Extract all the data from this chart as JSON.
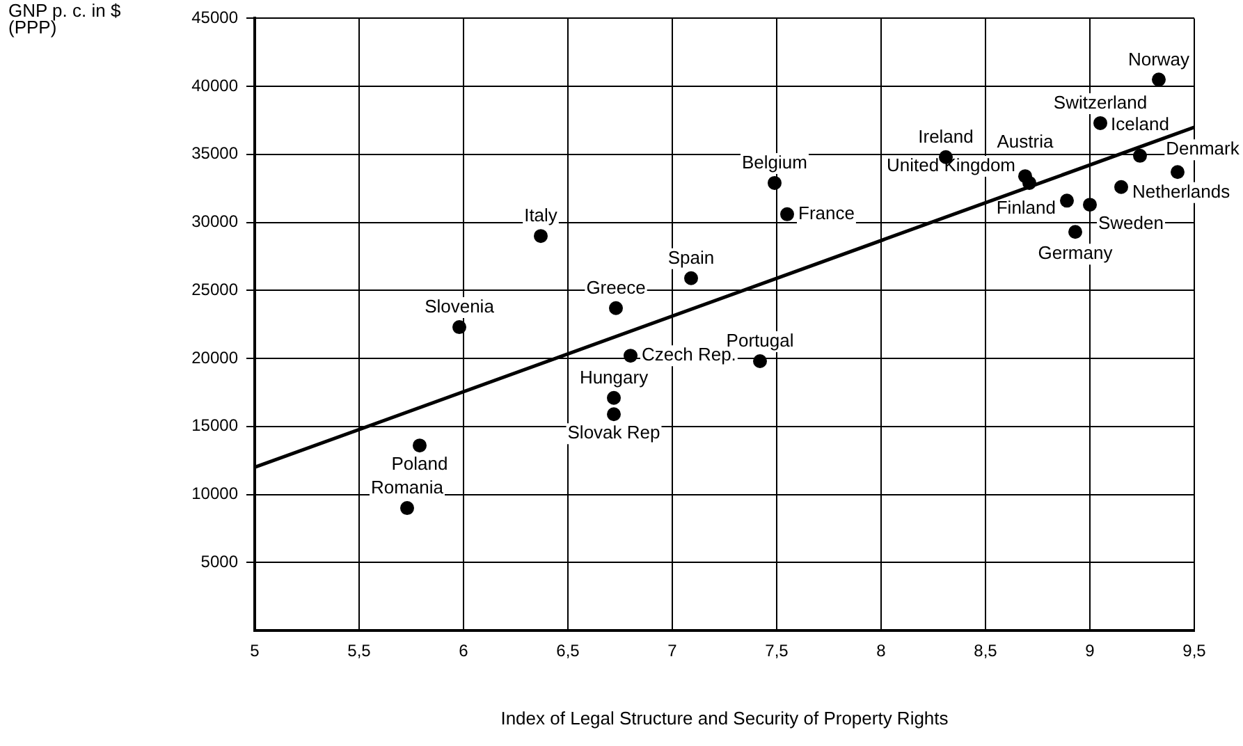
{
  "chart_data": {
    "type": "scatter",
    "xlabel": "Index of Legal Structure and Security of Property Rights",
    "ylabel": "GNP p. c. in $ (PPP)",
    "series": [
      {
        "type": "scatter",
        "color": "#000000",
        "marker": "circle",
        "x": [
          9.33,
          9.05,
          8.31,
          9.24,
          9.42,
          7.49,
          7.55,
          8.69,
          8.71,
          9.15,
          9.0,
          8.89,
          8.93,
          6.37,
          7.09,
          6.73,
          5.98,
          6.8,
          7.42,
          6.72,
          6.72,
          5.79,
          5.73
        ],
        "values": [
          40500,
          37300,
          34800,
          34900,
          33700,
          32900,
          30600,
          33400,
          32900,
          32600,
          31300,
          31600,
          29300,
          29000,
          25900,
          23700,
          22300,
          20200,
          19800,
          17100,
          15900,
          13600,
          9000
        ]
      },
      {
        "type": "line",
        "color": "#000000",
        "marker": "none",
        "x": [
          5,
          9.5
        ],
        "values": [
          12000,
          37000
        ]
      }
    ],
    "annotations": [
      {
        "text": "Norway",
        "x": 9.33,
        "y": 40500
      },
      {
        "text": "Switzerland",
        "x": 9.05,
        "y": 37300
      },
      {
        "text": "Ireland",
        "x": 8.31,
        "y": 34800
      },
      {
        "text": "Iceland",
        "x": 9.24,
        "y": 34900
      },
      {
        "text": "Denmark",
        "x": 9.42,
        "y": 33700
      },
      {
        "text": "Belgium",
        "x": 7.49,
        "y": 32900
      },
      {
        "text": "France",
        "x": 7.55,
        "y": 30600
      },
      {
        "text": "Austria",
        "x": 8.69,
        "y": 33400
      },
      {
        "text": "United Kingdom",
        "x": 8.71,
        "y": 32900
      },
      {
        "text": "Netherlands",
        "x": 9.15,
        "y": 32600
      },
      {
        "text": "Sweden",
        "x": 9.0,
        "y": 31300
      },
      {
        "text": "Finland",
        "x": 8.89,
        "y": 31600
      },
      {
        "text": "Germany",
        "x": 8.93,
        "y": 29300
      },
      {
        "text": "Italy",
        "x": 6.37,
        "y": 29000
      },
      {
        "text": "Spain",
        "x": 7.09,
        "y": 25900
      },
      {
        "text": "Greece",
        "x": 6.73,
        "y": 23700
      },
      {
        "text": "Slovenia",
        "x": 5.98,
        "y": 22300
      },
      {
        "text": "Czech Rep.",
        "x": 6.8,
        "y": 20200
      },
      {
        "text": "Portugal",
        "x": 7.42,
        "y": 19800
      },
      {
        "text": "Hungary",
        "x": 6.72,
        "y": 17100
      },
      {
        "text": "Slovak Rep",
        "x": 6.72,
        "y": 15900
      },
      {
        "text": "Poland",
        "x": 5.79,
        "y": 13600
      },
      {
        "text": "Romania",
        "x": 5.73,
        "y": 9000
      }
    ],
    "xlim": [
      5,
      9.5
    ],
    "xticks": [
      5,
      {
        "value": 5.5,
        "label": "5,5"
      },
      6,
      {
        "value": 6.5,
        "label": "6,5"
      },
      7,
      {
        "value": 7.5,
        "label": "7,5"
      },
      8,
      {
        "value": 8.5,
        "label": "8,5"
      },
      9,
      {
        "value": 9.5,
        "label": "9,5"
      }
    ],
    "ylim": [
      0,
      45000
    ],
    "yticks": [
      5000,
      10000,
      15000,
      20000,
      25000,
      30000,
      35000,
      40000,
      45000
    ],
    "grid": true,
    "legend": false
  }
}
